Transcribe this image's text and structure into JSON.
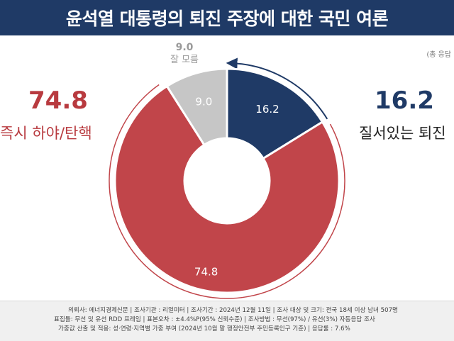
{
  "title": "윤석열 대통령의 퇴진 주장에 대한 국민 여론",
  "unit_note": "(총 응답",
  "left_callout": {
    "value": "74.8",
    "label": "즉시 하야/탄핵"
  },
  "right_callout": {
    "value": "16.2",
    "label": "질서있는 퇴진"
  },
  "top_callout": {
    "value": "9.0",
    "label": "잘 모름"
  },
  "footer": {
    "line1": "의뢰사: 에너지경제신문 | 조사기관 : 리얼미터 | 조사기간 : 2024년 12월 11일 | 조사 대상 및 크기: 전국 18세 이상 남녀 507명",
    "line2": "표집틀: 무선 및 유선 RDD 프레임 | 표본오차 : ±4.4%P(95% 신뢰수준) | 조사방법 : 무선(97%) / 유선(3%) 자동응답 조사",
    "line3": "가중값 산출 및 적용: 성·연령·지역별 가중 부여 (2024년 10월 말 행정안전부 주민등록인구 기준) | 응답률 : 7.6%"
  },
  "chart_data": {
    "type": "pie",
    "donut": true,
    "slices": [
      {
        "value": 16.2,
        "label": "16.2",
        "color": "#1f3a66"
      },
      {
        "value": 74.8,
        "label": "74.8",
        "color": "#c1454a"
      },
      {
        "value": 9.0,
        "label": "9.0",
        "color": "#c6c6c6"
      }
    ],
    "start_at": "12 o'clock",
    "direction": "clockwise"
  },
  "colors": {
    "title_bg": "#1f3a66",
    "red": "#b83a3f",
    "navy": "#1f3a66",
    "gray": "#9a9a9a"
  }
}
